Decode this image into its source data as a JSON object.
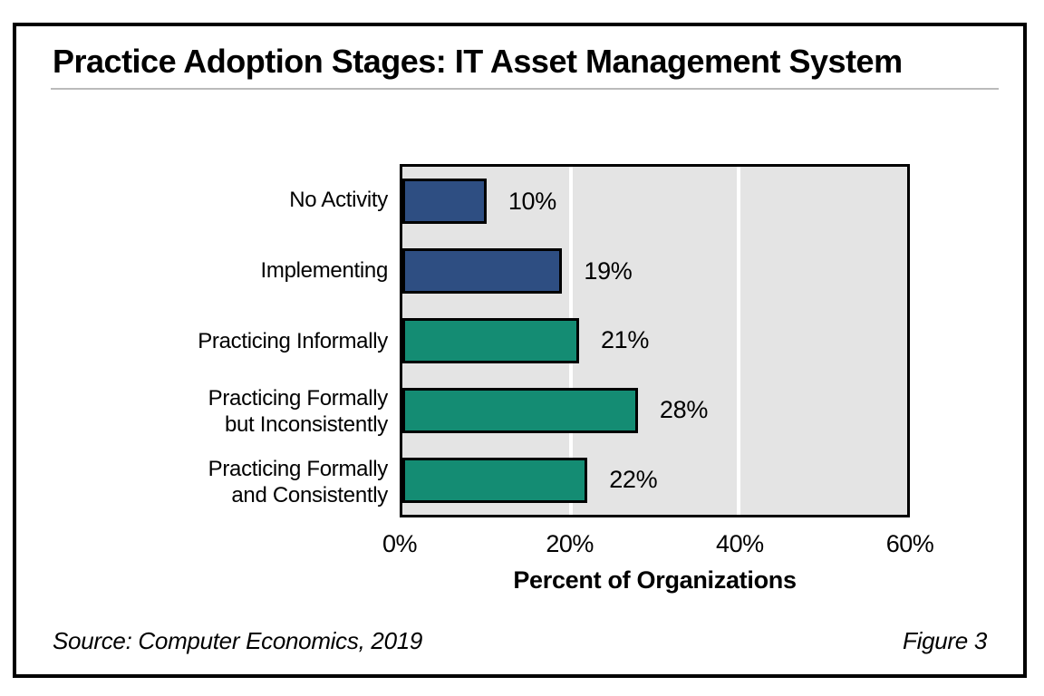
{
  "figure": {
    "title": "Practice Adoption Stages: IT Asset Management System",
    "source": "Source: Computer Economics, 2019",
    "figure_label": "Figure 3"
  },
  "colors": {
    "bar_blue": "#2E4E82",
    "bar_teal": "#148C73",
    "plot_background": "#E4E4E4",
    "gridline": "#FFFFFF",
    "frame_border": "#000000",
    "title_rule": "#BBBBBB"
  },
  "chart_data": {
    "type": "bar",
    "orientation": "horizontal",
    "title": "Practice Adoption Stages: IT Asset Management System",
    "categories": [
      "No Activity",
      "Implementing",
      "Practicing Informally",
      "Practicing Formally but Inconsistently",
      "Practicing Formally and Consistently"
    ],
    "category_lines": [
      [
        "No Activity"
      ],
      [
        "Implementing"
      ],
      [
        "Practicing Informally"
      ],
      [
        "Practicing Formally",
        "but Inconsistently"
      ],
      [
        "Practicing Formally",
        "and Consistently"
      ]
    ],
    "values": [
      10,
      19,
      21,
      28,
      22
    ],
    "value_labels": [
      "10%",
      "19%",
      "21%",
      "28%",
      "22%"
    ],
    "bar_colors": [
      "#2E4E82",
      "#2E4E82",
      "#148C73",
      "#148C73",
      "#148C73"
    ],
    "xlabel": "Percent of Organizations",
    "ylabel": "",
    "xlim": [
      0,
      60
    ],
    "x_ticks": [
      "0%",
      "20%",
      "40%",
      "60%"
    ],
    "x_tick_values": [
      0,
      20,
      40,
      60
    ],
    "gridlines_at": [
      20,
      40
    ],
    "grid": true,
    "legend": false
  }
}
